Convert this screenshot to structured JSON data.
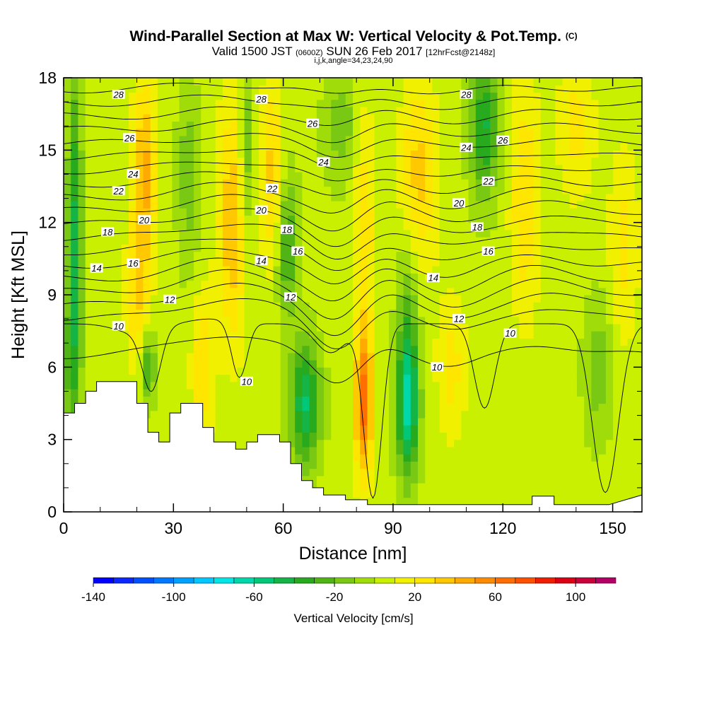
{
  "header": {
    "title": "Wind-Parallel Section at Max W: Vertical Velocity & Pot.Temp.",
    "title_mark": "(C)",
    "subtitle_a": "Valid 1500 JST",
    "subtitle_b": "(0600Z)",
    "subtitle_c": "SUN 26 Feb 2017",
    "subtitle_d": "[12hrFcst@2148z]",
    "subtitle_e": "i,j,k,angle=34,23,24,90"
  },
  "chart_data": {
    "type": "heatmap",
    "xlabel": "Distance [nm]",
    "ylabel": "Height [Kft MSL]",
    "xlim": [
      0,
      158
    ],
    "ylim": [
      0,
      18
    ],
    "x_ticks": [
      0,
      30,
      60,
      90,
      120,
      150
    ],
    "y_ticks": [
      0,
      3,
      6,
      9,
      12,
      15,
      18
    ],
    "colorbar": {
      "label": "Vertical Velocity [cm/s]",
      "tick_values": [
        -140,
        -100,
        -60,
        -20,
        20,
        60,
        100
      ],
      "tick_labels": [
        "-140",
        "-100",
        "-60",
        "-20",
        "20",
        "60",
        "100"
      ],
      "min": -140,
      "max": 120,
      "step": 10
    },
    "isentropes": {
      "field": "Pot.Temp. (C)",
      "levels": [
        10,
        11,
        12,
        13,
        14,
        15,
        16,
        17,
        18,
        19,
        20,
        21,
        22,
        23,
        24,
        25,
        26,
        27,
        28,
        29
      ],
      "labels": [
        {
          "text": "10",
          "x": 15,
          "y": 7.7
        },
        {
          "text": "10",
          "x": 50,
          "y": 5.4
        },
        {
          "text": "10",
          "x": 102,
          "y": 6.0
        },
        {
          "text": "10",
          "x": 122,
          "y": 7.4
        },
        {
          "text": "12",
          "x": 29,
          "y": 8.8
        },
        {
          "text": "12",
          "x": 62,
          "y": 8.9
        },
        {
          "text": "12",
          "x": 108,
          "y": 8.0
        },
        {
          "text": "14",
          "x": 9,
          "y": 10.1
        },
        {
          "text": "14",
          "x": 54,
          "y": 10.4
        },
        {
          "text": "14",
          "x": 101,
          "y": 9.7
        },
        {
          "text": "16",
          "x": 19,
          "y": 10.3
        },
        {
          "text": "16",
          "x": 64,
          "y": 10.8
        },
        {
          "text": "16",
          "x": 116,
          "y": 10.8
        },
        {
          "text": "18",
          "x": 12,
          "y": 11.6
        },
        {
          "text": "18",
          "x": 61,
          "y": 11.7
        },
        {
          "text": "18",
          "x": 113,
          "y": 11.8
        },
        {
          "text": "20",
          "x": 22,
          "y": 12.1
        },
        {
          "text": "20",
          "x": 54,
          "y": 12.5
        },
        {
          "text": "20",
          "x": 108,
          "y": 12.8
        },
        {
          "text": "22",
          "x": 15,
          "y": 13.3
        },
        {
          "text": "22",
          "x": 57,
          "y": 13.4
        },
        {
          "text": "22",
          "x": 116,
          "y": 13.7
        },
        {
          "text": "24",
          "x": 19,
          "y": 14.0
        },
        {
          "text": "24",
          "x": 71,
          "y": 14.5
        },
        {
          "text": "24",
          "x": 110,
          "y": 15.1
        },
        {
          "text": "26",
          "x": 18,
          "y": 15.5
        },
        {
          "text": "26",
          "x": 68,
          "y": 16.1
        },
        {
          "text": "26",
          "x": 120,
          "y": 15.4
        },
        {
          "text": "28",
          "x": 15,
          "y": 17.3
        },
        {
          "text": "28",
          "x": 54,
          "y": 17.1
        },
        {
          "text": "28",
          "x": 110,
          "y": 17.3
        }
      ]
    },
    "terrain_kft": [
      [
        0,
        4.1
      ],
      [
        3,
        4.1
      ],
      [
        3,
        4.5
      ],
      [
        6,
        4.5
      ],
      [
        6,
        5.0
      ],
      [
        9,
        5.0
      ],
      [
        9,
        5.4
      ],
      [
        20,
        5.4
      ],
      [
        20,
        4.5
      ],
      [
        23,
        4.5
      ],
      [
        23,
        3.3
      ],
      [
        26,
        3.3
      ],
      [
        26,
        2.9
      ],
      [
        29,
        2.9
      ],
      [
        29,
        4.1
      ],
      [
        32,
        4.1
      ],
      [
        32,
        4.5
      ],
      [
        38,
        4.5
      ],
      [
        38,
        3.5
      ],
      [
        41,
        3.5
      ],
      [
        41,
        2.9
      ],
      [
        47,
        2.9
      ],
      [
        47,
        2.6
      ],
      [
        50,
        2.6
      ],
      [
        50,
        2.9
      ],
      [
        53,
        2.9
      ],
      [
        53,
        3.2
      ],
      [
        59,
        3.2
      ],
      [
        59,
        2.9
      ],
      [
        62,
        2.9
      ],
      [
        62,
        2.0
      ],
      [
        65,
        2.0
      ],
      [
        65,
        1.3
      ],
      [
        68,
        1.3
      ],
      [
        68,
        1.0
      ],
      [
        71,
        1.0
      ],
      [
        71,
        0.7
      ],
      [
        77,
        0.7
      ],
      [
        77,
        0.5
      ],
      [
        83,
        0.5
      ],
      [
        83,
        0.3
      ],
      [
        89,
        0.3
      ],
      [
        89,
        0.3
      ],
      [
        128,
        0.3
      ],
      [
        128,
        0.65
      ],
      [
        134,
        0.65
      ],
      [
        134,
        0.3
      ],
      [
        149,
        0.3
      ],
      [
        158,
        0.7
      ],
      [
        158,
        0
      ]
    ],
    "vertical_velocity_features": [
      {
        "x": 3,
        "z": 12,
        "w": -45,
        "sx": 2.0,
        "sz": 6.5
      },
      {
        "x": 2,
        "z": 6,
        "w": -25,
        "sx": 2.5,
        "sz": 3
      },
      {
        "x": 22,
        "z": 14,
        "w": 40,
        "sx": 3,
        "sz": 4
      },
      {
        "x": 20,
        "z": 9,
        "w": 25,
        "sx": 3,
        "sz": 3
      },
      {
        "x": 23,
        "z": 6,
        "w": -35,
        "sx": 2,
        "sz": 1.5
      },
      {
        "x": 34,
        "z": 14,
        "w": -20,
        "sx": 3,
        "sz": 4
      },
      {
        "x": 38,
        "z": 6,
        "w": 25,
        "sx": 3,
        "sz": 3
      },
      {
        "x": 46,
        "z": 12,
        "w": 35,
        "sx": 4,
        "sz": 5
      },
      {
        "x": 50,
        "z": 15,
        "w": -25,
        "sx": 2,
        "sz": 4
      },
      {
        "x": 57,
        "z": 14,
        "w": 30,
        "sx": 3,
        "sz": 4
      },
      {
        "x": 61,
        "z": 11,
        "w": -35,
        "sx": 3,
        "sz": 3
      },
      {
        "x": 66,
        "z": 4.5,
        "w": -55,
        "sx": 4,
        "sz": 2.5
      },
      {
        "x": 76,
        "z": 16,
        "w": -20,
        "sx": 5,
        "sz": 2.5
      },
      {
        "x": 82,
        "z": 4.5,
        "w": 60,
        "sx": 2.5,
        "sz": 3
      },
      {
        "x": 82,
        "z": 12,
        "w": 25,
        "sx": 3,
        "sz": 5
      },
      {
        "x": 94,
        "z": 4.5,
        "w": -70,
        "sx": 3,
        "sz": 3
      },
      {
        "x": 94,
        "z": 9,
        "w": -20,
        "sx": 3,
        "sz": 3
      },
      {
        "x": 97,
        "z": 14,
        "w": 30,
        "sx": 5,
        "sz": 4
      },
      {
        "x": 106,
        "z": 6,
        "w": 20,
        "sx": 4,
        "sz": 3
      },
      {
        "x": 115,
        "z": 16,
        "w": -45,
        "sx": 4,
        "sz": 3
      },
      {
        "x": 126,
        "z": 13,
        "w": 25,
        "sx": 4,
        "sz": 5
      },
      {
        "x": 140,
        "z": 16,
        "w": 20,
        "sx": 5,
        "sz": 3
      },
      {
        "x": 146,
        "z": 6,
        "w": -20,
        "sx": 4,
        "sz": 3
      },
      {
        "x": 153,
        "z": 11,
        "w": 20,
        "sx": 4,
        "sz": 4
      }
    ],
    "grid": false
  }
}
